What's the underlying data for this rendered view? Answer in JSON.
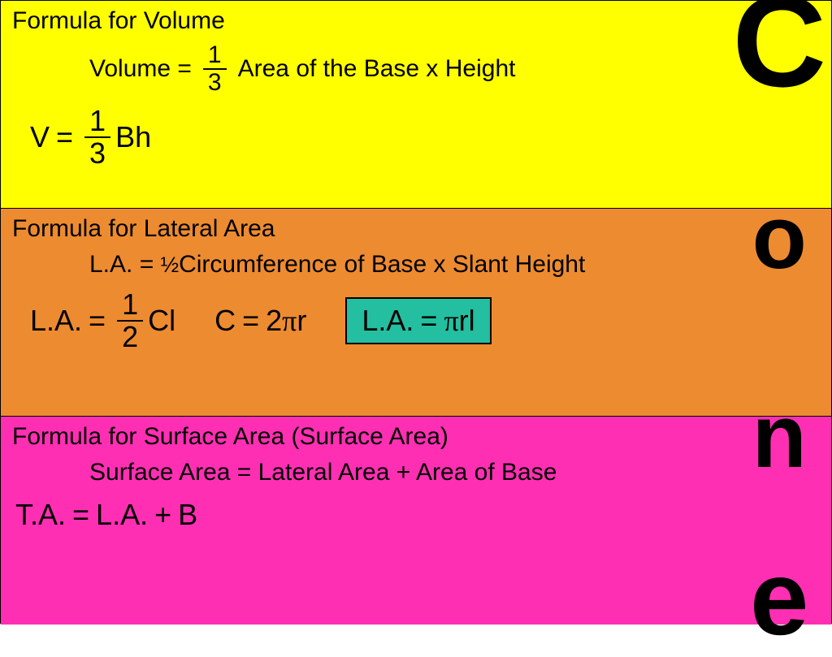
{
  "colors": {
    "section_volume_bg": "#ffff00",
    "section_lateral_bg": "#ed8b31",
    "section_surface_bg": "#ff2fb3",
    "highlight_bg": "#23bfa0",
    "text": "#000000",
    "border": "#000000"
  },
  "typography": {
    "body_font": "Comic Sans MS",
    "heading_size_pt": 30,
    "word_formula_size_pt": 30,
    "symbol_formula_size_pt": 36,
    "cone_letter_font": "Arial Black"
  },
  "cone_label": {
    "letters": [
      "C",
      "o",
      "n",
      "e"
    ]
  },
  "volume": {
    "heading": "Formula for Volume",
    "word_formula": {
      "lhs": "Volume =",
      "frac_num": "1",
      "frac_den": "3",
      "rhs": "Area of the Base x Height"
    },
    "symbol_formula": {
      "v": "V",
      "eq": "=",
      "frac_num": "1",
      "frac_den": "3",
      "bh": "Bh"
    }
  },
  "lateral": {
    "heading": "Formula for Lateral Area",
    "word_formula": {
      "lhs": "L.A. = ",
      "half": "½",
      "rhs": "Circumference of Base x Slant Height"
    },
    "formula1": {
      "la": "L.A.",
      "eq": "=",
      "frac_num": "1",
      "frac_den": "2",
      "cl": "Cl"
    },
    "formula2": {
      "c": "C",
      "eq": "=",
      "two": "2",
      "pi": "π",
      "r": "r"
    },
    "formula3": {
      "la": "L.A.",
      "eq": "=",
      "pi": "π",
      "rl": "rl"
    }
  },
  "surface": {
    "heading": "Formula for Surface Area (Surface Area)",
    "word_formula": "Surface Area = Lateral Area + Area of Base",
    "symbol_formula": {
      "ta": "T.A.",
      "eq": "=",
      "la": "L.A.",
      "plus": "+",
      "b": "B"
    }
  }
}
